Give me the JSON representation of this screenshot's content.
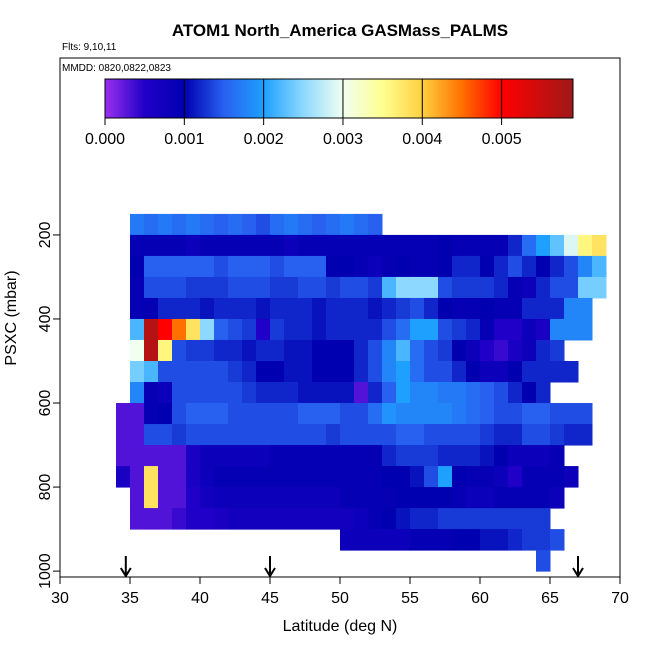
{
  "chart_data": {
    "type": "heatmap",
    "title": "ATOM1 North_America GASMass_PALMS",
    "flights": "Flts: 9,10,11",
    "dates": "MMDD: 0820,0822,0823",
    "xlabel": "Latitude (deg N)",
    "ylabel": "PSXC (mbar)",
    "xlim": [
      30,
      70
    ],
    "ylim": [
      1014,
      -221
    ],
    "xticks": [
      30,
      35,
      40,
      45,
      50,
      55,
      60,
      65,
      70
    ],
    "yticks": [
      200,
      400,
      600,
      800,
      1000
    ],
    "bin_height": 50,
    "bin_width": 1,
    "colorbar_lim": [
      0,
      0.0059
    ],
    "colorbar_ticks": [
      {
        "value": 0,
        "label": "0.000"
      },
      {
        "value": 0.001,
        "label": "0.001"
      },
      {
        "value": 0.002,
        "label": "0.002"
      },
      {
        "value": 0.003,
        "label": "0.003"
      },
      {
        "value": 0.004,
        "label": "0.004"
      },
      {
        "value": 0.005,
        "label": "0.005"
      }
    ],
    "colorscale": {
      "values": [
        0,
        0.0005,
        0.001,
        0.0015,
        0.002,
        0.0025,
        0.003,
        0.0035,
        0.004,
        0.0045,
        0.005,
        0.0059
      ],
      "colors": [
        "#9a30f0",
        "#2000c8",
        "#0000b0",
        "#2860f0",
        "#1ea0ff",
        "#8cd8ff",
        "#f0fff0",
        "#ffff90",
        "#ffd040",
        "#ff7000",
        "#ff0000",
        "#a01818"
      ]
    },
    "arrows_lat": [
      34.7,
      45,
      67
    ],
    "rows": [
      {
        "pressure": 150,
        "lat_start": 35,
        "values": [
          0.0017,
          0.0016,
          0.0017,
          0.0016,
          0.0017,
          0.0016,
          0.0015,
          0.0016,
          0.0015,
          0.0014,
          0.0016,
          0.0017,
          0.0016,
          0.0015,
          0.0016,
          0.0017,
          0.0016,
          0.0015
        ]
      },
      {
        "pressure": 200,
        "lat_start": 35,
        "values": [
          0.0009,
          0.0009,
          0.0009,
          0.0009,
          0.0008,
          0.0009,
          0.0009,
          0.0009,
          0.0009,
          0.0009,
          0.0009,
          0.0008,
          0.0009,
          0.0009,
          0.0009,
          0.0009,
          0.0009,
          0.0009,
          0.0009,
          0.0009,
          0.0009,
          0.0009,
          0.001,
          0.0009,
          0.0009,
          0.0009,
          0.0009,
          0.0012,
          0.0016,
          0.002,
          0.0023,
          0.0029,
          0.0036,
          0.0038
        ]
      },
      {
        "pressure": 250,
        "lat_start": 35,
        "values": [
          0.001,
          0.0015,
          0.0015,
          0.0015,
          0.0015,
          0.0015,
          0.0014,
          0.0015,
          0.0015,
          0.0015,
          0.0014,
          0.0015,
          0.0015,
          0.0015,
          0.001,
          0.001,
          0.0009,
          0.0008,
          0.0009,
          0.001,
          0.0009,
          0.0009,
          0.001,
          0.0012,
          0.0012,
          0.001,
          0.0012,
          0.0014,
          0.0012,
          0.001,
          0.0012,
          0.0014,
          0.0018,
          0.0022
        ]
      },
      {
        "pressure": 300,
        "lat_start": 35,
        "values": [
          0.0009,
          0.0014,
          0.0014,
          0.0014,
          0.0013,
          0.0013,
          0.0013,
          0.0014,
          0.0014,
          0.0014,
          0.0013,
          0.0013,
          0.0014,
          0.0014,
          0.0013,
          0.0014,
          0.0014,
          0.0013,
          0.0022,
          0.0025,
          0.0025,
          0.0025,
          0.0014,
          0.0013,
          0.0013,
          0.0013,
          0.0012,
          0.0009,
          0.0008,
          0.0012,
          0.0014,
          0.0014,
          0.0024,
          0.0024
        ]
      },
      {
        "pressure": 350,
        "lat_start": 35,
        "values": [
          0.0009,
          0.0009,
          0.0012,
          0.0012,
          0.0012,
          0.0011,
          0.0012,
          0.0012,
          0.0012,
          0.0011,
          0.0012,
          0.0012,
          0.0012,
          0.0011,
          0.0012,
          0.0012,
          0.0012,
          0.0011,
          0.0012,
          0.0013,
          0.0014,
          0.0012,
          0.001,
          0.0009,
          0.0009,
          0.001,
          0.0009,
          0.0009,
          0.0012,
          0.0012,
          0.0012,
          0.0018,
          0.0018
        ]
      },
      {
        "pressure": 400,
        "lat_start": 35,
        "values": [
          0.0022,
          0.0057,
          0.005,
          0.0045,
          0.0038,
          0.0025,
          0.0015,
          0.0014,
          0.0013,
          0.0005,
          0.0013,
          0.0012,
          0.0012,
          0.0011,
          0.0012,
          0.0012,
          0.0012,
          0.0012,
          0.0014,
          0.0016,
          0.002,
          0.002,
          0.0014,
          0.0013,
          0.0012,
          0.0009,
          0.0005,
          0.0005,
          0.0008,
          0.0006,
          0.0018,
          0.0018,
          0.0018
        ]
      },
      {
        "pressure": 450,
        "lat_start": 35,
        "values": [
          0.003,
          0.0057,
          0.0036,
          0.0014,
          0.0013,
          0.0013,
          0.0012,
          0.0012,
          0.0011,
          0.0012,
          0.0012,
          0.0011,
          0.0011,
          0.001,
          0.001,
          0.001,
          0.0012,
          0.0014,
          0.0018,
          0.0022,
          0.0016,
          0.0014,
          0.0013,
          0.001,
          0.0008,
          0.0005,
          0.0004,
          0.0006,
          0.0008,
          0.0012,
          0.0013
        ]
      },
      {
        "pressure": 500,
        "lat_start": 35,
        "values": [
          0.0024,
          0.0022,
          0.0014,
          0.0014,
          0.0014,
          0.0014,
          0.0014,
          0.0013,
          0.0012,
          0.001,
          0.001,
          0.0011,
          0.0011,
          0.001,
          0.001,
          0.001,
          0.0012,
          0.0014,
          0.0018,
          0.002,
          0.0016,
          0.0014,
          0.0014,
          0.0012,
          0.001,
          0.0008,
          0.0008,
          0.001,
          0.0012,
          0.0012,
          0.0012,
          0.0012
        ]
      },
      {
        "pressure": 550,
        "lat_start": 35,
        "values": [
          0.0018,
          0.0009,
          0.0008,
          0.0014,
          0.0014,
          0.0014,
          0.0014,
          0.0014,
          0.0013,
          0.0012,
          0.0012,
          0.0012,
          0.0011,
          0.0011,
          0.0011,
          0.0011,
          0.0003,
          0.0012,
          0.0015,
          0.002,
          0.0018,
          0.0018,
          0.0017,
          0.0017,
          0.0016,
          0.0015,
          0.0014,
          0.0012,
          0.001,
          0.0012
        ]
      },
      {
        "pressure": 600,
        "lat_start": 34,
        "values": [
          0.0003,
          0.0003,
          0.0009,
          0.001,
          0.0014,
          0.0015,
          0.0015,
          0.0015,
          0.0014,
          0.0014,
          0.0014,
          0.0014,
          0.0014,
          0.0015,
          0.0015,
          0.0015,
          0.0014,
          0.0014,
          0.0016,
          0.0019,
          0.0018,
          0.0018,
          0.0018,
          0.0018,
          0.0017,
          0.0016,
          0.0015,
          0.0014,
          0.0014,
          0.0015,
          0.0015,
          0.0014,
          0.0014,
          0.0014
        ]
      },
      {
        "pressure": 650,
        "lat_start": 34,
        "values": [
          0.0003,
          0.0003,
          0.0014,
          0.0014,
          0.0013,
          0.0014,
          0.0014,
          0.0014,
          0.0014,
          0.0014,
          0.0014,
          0.0014,
          0.0014,
          0.0014,
          0.0014,
          0.0013,
          0.0014,
          0.0014,
          0.0014,
          0.0014,
          0.0015,
          0.0015,
          0.0014,
          0.0014,
          0.0014,
          0.0014,
          0.0013,
          0.0012,
          0.0012,
          0.0014,
          0.0014,
          0.0013,
          0.0012,
          0.0012
        ]
      },
      {
        "pressure": 700,
        "lat_start": 34,
        "values": [
          0.0003,
          0.0003,
          0.0003,
          0.0003,
          0.0003,
          0.0006,
          0.0008,
          0.0008,
          0.0008,
          0.0008,
          0.0008,
          0.0009,
          0.0009,
          0.0009,
          0.0009,
          0.0009,
          0.0009,
          0.0009,
          0.0009,
          0.0012,
          0.0013,
          0.0013,
          0.0013,
          0.0012,
          0.0012,
          0.0012,
          0.0011,
          0.001,
          0.0008,
          0.0008,
          0.0008,
          0.0009
        ]
      },
      {
        "pressure": 750,
        "lat_start": 34,
        "values": [
          0.0006,
          0.0003,
          0.0038,
          0.0003,
          0.0003,
          0.0006,
          0.0008,
          0.0009,
          0.0009,
          0.0009,
          0.0009,
          0.0009,
          0.0009,
          0.0009,
          0.0009,
          0.0009,
          0.0009,
          0.0009,
          0.0009,
          0.001,
          0.001,
          0.0011,
          0.0014,
          0.002,
          0.001,
          0.0009,
          0.0009,
          0.0008,
          0.0005,
          0.0009,
          0.0009,
          0.0009,
          0.0008
        ]
      },
      {
        "pressure": 800,
        "lat_start": 35,
        "values": [
          0.0003,
          0.0038,
          0.0003,
          0.0003,
          0.0005,
          0.0007,
          0.0008,
          0.0008,
          0.0008,
          0.0008,
          0.0008,
          0.0008,
          0.0008,
          0.0008,
          0.0008,
          0.0009,
          0.0009,
          0.0009,
          0.0009,
          0.001,
          0.001,
          0.001,
          0.001,
          0.0009,
          0.0008,
          0.0008,
          0.0009,
          0.0009,
          0.0009,
          0.0009,
          0.0008
        ]
      },
      {
        "pressure": 850,
        "lat_start": 35,
        "values": [
          0.0003,
          0.0003,
          0.0003,
          0.0004,
          0.0005,
          0.0005,
          0.0006,
          0.0007,
          0.0007,
          0.0007,
          0.0007,
          0.0007,
          0.0007,
          0.0007,
          0.0007,
          0.0007,
          0.0008,
          0.0009,
          0.001,
          0.0011,
          0.0012,
          0.0012,
          0.0013,
          0.0013,
          0.0013,
          0.0013,
          0.0013,
          0.0013,
          0.0013,
          0.0013
        ]
      },
      {
        "pressure": 900,
        "lat_start": 50,
        "values": [
          0.0008,
          0.0008,
          0.0008,
          0.0008,
          0.0008,
          0.0009,
          0.0009,
          0.0009,
          0.001,
          0.001,
          0.0011,
          0.0011,
          0.0012,
          0.0013,
          0.0013,
          0.0014
        ]
      },
      {
        "pressure": 950,
        "lat_start": 64,
        "values": [
          0.0014
        ]
      }
    ]
  }
}
